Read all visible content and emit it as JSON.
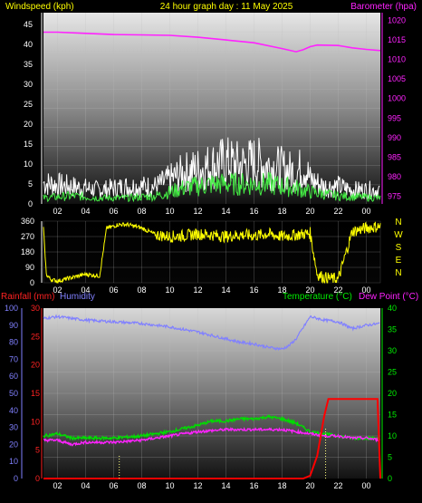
{
  "header": {
    "windspeed_label": "Windspeed (kph)",
    "title": "24 hour graph day : 11 May 2025",
    "barometer_label": "Barometer (hpa)"
  },
  "lower_header": {
    "rainfall_label": "Rainfall (mm)",
    "humidity_label": "Humidity",
    "temperature_label": "Temperature (°C)",
    "dewpoint_label": "Dew Point (°C)"
  },
  "colors": {
    "windspeed": "#ffffff",
    "gust": "#c0c0c0",
    "wind_avg": "#44ee44",
    "barometer": "#ff22ff",
    "direction": "#ffff00",
    "rain": "#ff0000",
    "humidity": "#8080ff",
    "temperature": "#00dd00",
    "dewpoint": "#ff22ff",
    "title": "#ffff00"
  },
  "chart_data": [
    {
      "type": "line",
      "title": "24 hour graph day : 11 May 2025",
      "x_ticks": [
        "02",
        "04",
        "06",
        "08",
        "10",
        "12",
        "14",
        "16",
        "18",
        "20",
        "22",
        "00"
      ],
      "x_hours": [
        1,
        25
      ],
      "y_left": {
        "label": "Windspeed (kph)",
        "ticks": [
          0,
          5,
          10,
          15,
          20,
          25,
          30,
          35,
          40,
          45
        ],
        "range": [
          0,
          48
        ]
      },
      "y_right": {
        "label": "Barometer (hpa)",
        "ticks": [
          975,
          980,
          985,
          990,
          995,
          1000,
          1005,
          1010,
          1015,
          1020
        ],
        "range": [
          973,
          1022
        ]
      },
      "series": [
        {
          "name": "Windspeed",
          "axis": "left",
          "style": "noisy",
          "x": [
            1,
            3,
            5,
            7,
            9,
            10,
            11,
            12,
            13,
            14,
            15,
            16,
            17,
            18,
            19,
            19.6,
            20,
            21,
            22,
            23,
            24,
            25
          ],
          "values": [
            6,
            5,
            4,
            5,
            5,
            7,
            9,
            10,
            11,
            12,
            11,
            12,
            11,
            10,
            9,
            11,
            7,
            5,
            5,
            4,
            4,
            4
          ]
        },
        {
          "name": "Wind average",
          "axis": "left",
          "style": "noisy",
          "x": [
            1,
            3,
            5,
            7,
            9,
            11,
            13,
            15,
            17,
            19,
            20,
            22,
            25
          ],
          "values": [
            1.5,
            2,
            1.5,
            1.5,
            2,
            4,
            5,
            5,
            5,
            4,
            3,
            2,
            1.5
          ]
        },
        {
          "name": "Barometer",
          "axis": "right",
          "x": [
            1,
            2,
            4,
            6,
            8,
            10,
            12,
            14,
            16,
            18,
            19,
            19.5,
            20,
            20.5,
            22,
            23,
            24,
            25
          ],
          "values": [
            1017,
            1017,
            1016.7,
            1016.4,
            1016.3,
            1016.2,
            1015.7,
            1015,
            1014.3,
            1012.8,
            1012,
            1012.5,
            1013.3,
            1013.7,
            1013.6,
            1013,
            1012.6,
            1012.3
          ]
        }
      ]
    },
    {
      "type": "scatter",
      "x_ticks": [
        "02",
        "04",
        "06",
        "08",
        "10",
        "12",
        "14",
        "16",
        "18",
        "20",
        "22",
        "00"
      ],
      "x_hours": [
        1,
        25
      ],
      "y_left": {
        "ticks": [
          0,
          90,
          180,
          270,
          360
        ],
        "range": [
          0,
          360
        ]
      },
      "y_right": {
        "ticks": [
          "N",
          "W",
          "S",
          "E",
          "N"
        ]
      },
      "series": [
        {
          "name": "Wind direction",
          "x": [
            1,
            1.2,
            1.5,
            2,
            3,
            3.5,
            4,
            4.5,
            5,
            5.5,
            6,
            6.3,
            7,
            8,
            8.5,
            9,
            10,
            11,
            12,
            13,
            14,
            15,
            16,
            17,
            18,
            19,
            20,
            20.5,
            21,
            22,
            23,
            24,
            25
          ],
          "values": [
            320,
            50,
            20,
            10,
            30,
            40,
            50,
            45,
            40,
            320,
            330,
            340,
            340,
            320,
            300,
            280,
            270,
            275,
            285,
            280,
            270,
            280,
            275,
            285,
            270,
            280,
            290,
            50,
            30,
            20,
            300,
            320,
            330
          ]
        }
      ]
    },
    {
      "type": "line",
      "x_ticks": [
        "02",
        "04",
        "06",
        "08",
        "10",
        "12",
        "14",
        "16",
        "18",
        "20",
        "22",
        "00"
      ],
      "x_hours": [
        1,
        25
      ],
      "y_humidity": {
        "label": "Humidity",
        "ticks": [
          0,
          10,
          20,
          30,
          40,
          50,
          60,
          70,
          80,
          90,
          100
        ],
        "range": [
          0,
          100
        ]
      },
      "y_rain": {
        "label": "Rainfall (mm)",
        "ticks": [
          0,
          5,
          10,
          15,
          20,
          25,
          30
        ],
        "range": [
          0,
          30
        ]
      },
      "y_temp": {
        "label": "Temperature (°C) Dew Point (°C)",
        "ticks": [
          0,
          5,
          10,
          15,
          20,
          25,
          30,
          35,
          40
        ],
        "range": [
          0,
          40
        ]
      },
      "series": [
        {
          "name": "Humidity",
          "axis": "humidity",
          "x": [
            1,
            2,
            4,
            6,
            8,
            10,
            12,
            13,
            14,
            15,
            16,
            17,
            18,
            18.5,
            19,
            20,
            21,
            22,
            23,
            24,
            25
          ],
          "values": [
            94,
            95,
            93,
            92,
            91,
            89,
            86,
            84,
            82,
            80,
            79,
            77,
            76,
            78,
            82,
            95,
            93,
            92,
            88,
            90,
            91
          ]
        },
        {
          "name": "Temperature",
          "axis": "temp",
          "x": [
            1,
            2,
            3,
            4,
            6,
            8,
            10,
            12,
            13,
            14,
            15,
            16,
            17,
            18,
            19,
            20,
            21,
            22,
            23,
            24,
            25
          ],
          "values": [
            10,
            10.5,
            9.5,
            9.5,
            9.5,
            10,
            11,
            12.5,
            13.5,
            13.5,
            14,
            14,
            14.5,
            14,
            13,
            11,
            10.5,
            10,
            9.5,
            9.5,
            9.5
          ]
        },
        {
          "name": "Dew Point",
          "axis": "temp",
          "x": [
            1,
            2,
            3,
            4,
            6,
            8,
            10,
            12,
            14,
            16,
            18,
            19,
            20,
            21,
            22,
            23,
            24,
            25
          ],
          "values": [
            9,
            9,
            8,
            8.5,
            8.5,
            9,
            10,
            11,
            11.5,
            11.5,
            11.5,
            11,
            10.5,
            10,
            10,
            9.5,
            9.5,
            9
          ]
        },
        {
          "name": "Rainfall",
          "axis": "rain",
          "x": [
            1,
            19.5,
            20,
            20.5,
            21,
            21.3,
            22,
            24,
            24.8,
            25
          ],
          "values": [
            0,
            0,
            0.5,
            4,
            11,
            14,
            14,
            14,
            14,
            0
          ]
        },
        {
          "name": "Rain rate",
          "axis": "rain",
          "style": "dotted-bars",
          "x": [
            6.4,
            21.1
          ],
          "values": [
            4,
            9
          ]
        }
      ]
    }
  ]
}
